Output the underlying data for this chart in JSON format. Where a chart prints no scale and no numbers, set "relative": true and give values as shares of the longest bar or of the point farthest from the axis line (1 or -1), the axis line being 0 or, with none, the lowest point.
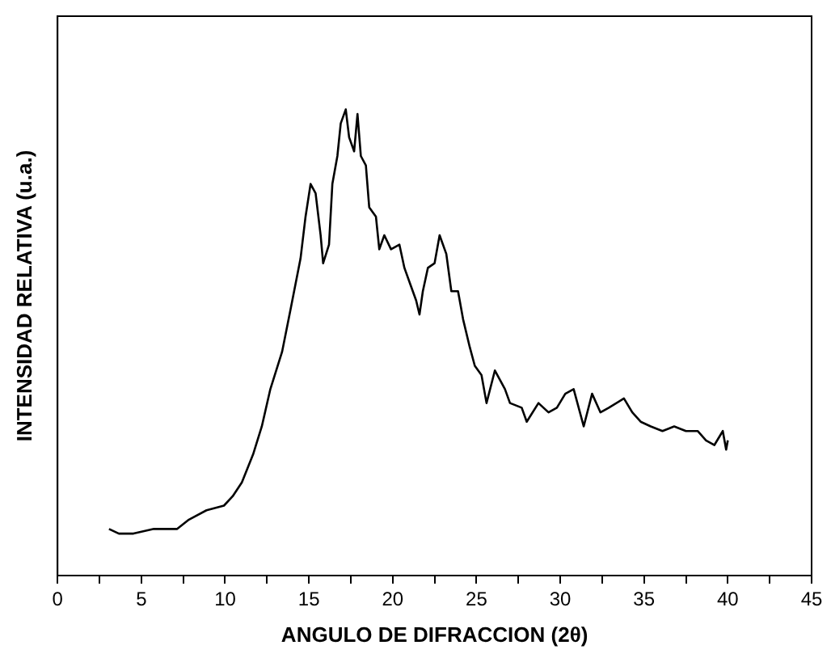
{
  "chart_data": {
    "type": "line",
    "relative": true,
    "xlabel": "ANGULO DE DIFRACCION (2θ)",
    "ylabel": "INTENSIDAD RELATIVA (u.a.)",
    "xlim": [
      0,
      45
    ],
    "xticks": [
      0,
      {
        "value": 2.5,
        "label": null
      },
      5,
      {
        "value": 7.5,
        "label": null
      },
      10,
      {
        "value": 12.5,
        "label": null
      },
      15,
      {
        "value": 17.5,
        "label": null
      },
      20,
      {
        "value": 22.5,
        "label": null
      },
      25,
      {
        "value": 27.5,
        "label": null
      },
      30,
      {
        "value": 32.5,
        "label": null
      },
      35,
      {
        "value": 37.5,
        "label": null
      },
      40,
      {
        "value": 42.5,
        "label": null
      },
      45
    ],
    "grid": false,
    "legend": false,
    "marker": "none",
    "line_style": "solid",
    "series": [
      {
        "color": "#000000",
        "x": [
          3.07,
          3.66,
          4.53,
          5.75,
          7.14,
          7.84,
          8.89,
          9.93,
          10.45,
          11.0,
          11.67,
          12.19,
          12.7,
          13.4,
          13.9,
          14.5,
          14.8,
          15.1,
          15.4,
          15.7,
          15.85,
          16.2,
          16.4,
          16.7,
          16.9,
          17.2,
          17.4,
          17.7,
          17.9,
          18.1,
          18.4,
          18.6,
          19.0,
          19.2,
          19.5,
          19.9,
          20.4,
          20.7,
          21.1,
          21.4,
          21.6,
          21.8,
          22.1,
          22.5,
          22.8,
          23.2,
          23.5,
          23.9,
          24.2,
          24.6,
          24.9,
          25.3,
          25.6,
          26.1,
          26.7,
          27.0,
          27.7,
          28.0,
          28.7,
          29.3,
          29.8,
          30.3,
          30.8,
          31.4,
          31.9,
          32.4,
          32.9,
          33.8,
          34.3,
          34.8,
          35.4,
          36.1,
          36.8,
          37.5,
          38.2,
          38.7,
          39.2,
          39.7,
          39.9,
          40.0
        ],
        "values": [
          0.1,
          0.09,
          0.09,
          0.1,
          0.1,
          0.12,
          0.14,
          0.15,
          0.17,
          0.2,
          0.26,
          0.32,
          0.4,
          0.48,
          0.57,
          0.68,
          0.77,
          0.84,
          0.82,
          0.73,
          0.67,
          0.71,
          0.84,
          0.9,
          0.97,
          1.0,
          0.94,
          0.91,
          0.99,
          0.9,
          0.88,
          0.79,
          0.77,
          0.7,
          0.73,
          0.7,
          0.71,
          0.66,
          0.62,
          0.59,
          0.56,
          0.61,
          0.66,
          0.67,
          0.73,
          0.69,
          0.61,
          0.61,
          0.55,
          0.49,
          0.45,
          0.43,
          0.37,
          0.44,
          0.4,
          0.37,
          0.36,
          0.33,
          0.37,
          0.35,
          0.36,
          0.39,
          0.4,
          0.32,
          0.39,
          0.35,
          0.36,
          0.38,
          0.35,
          0.33,
          0.32,
          0.31,
          0.32,
          0.31,
          0.31,
          0.29,
          0.28,
          0.31,
          0.27,
          0.29
        ]
      }
    ]
  }
}
